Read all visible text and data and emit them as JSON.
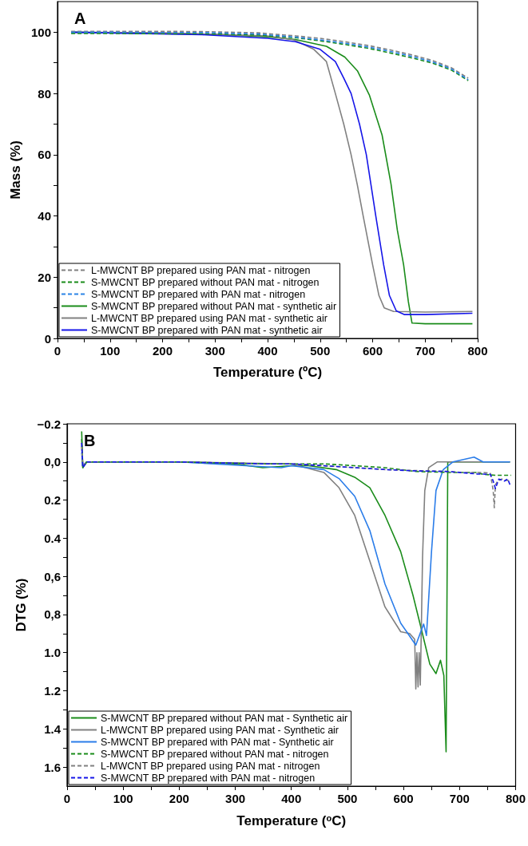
{
  "chart_data": [
    {
      "type": "line",
      "title": "A",
      "xlabel": "Temperature (ºC)",
      "ylabel": "Mass (%)",
      "xlim": [
        0,
        800
      ],
      "ylim": [
        0,
        110
      ],
      "xticks": [
        0,
        {
          "value": 50,
          "label": null
        },
        100,
        {
          "value": 150,
          "label": null
        },
        200,
        {
          "value": 250,
          "label": null
        },
        300,
        {
          "value": 350,
          "label": null
        },
        400,
        {
          "value": 450,
          "label": null
        },
        500,
        {
          "value": 550,
          "label": null
        },
        600,
        {
          "value": 650,
          "label": null
        },
        700,
        {
          "value": 750,
          "label": null
        },
        800
      ],
      "yticks": [
        0,
        {
          "value": 10,
          "label": null
        },
        20,
        {
          "value": 30,
          "label": null
        },
        40,
        {
          "value": 50,
          "label": null
        },
        60,
        {
          "value": 70,
          "label": null
        },
        80,
        {
          "value": 90,
          "label": null
        },
        100
      ],
      "grid": false,
      "legend": "bottom left",
      "marker": "none",
      "series": [
        {
          "name": "L-MWCNT BP prepared using PAN mat - nitrogen",
          "color": "#808080",
          "line_style": "dashed",
          "x": [
            26,
            100,
            200,
            276,
            382,
            453,
            500,
            547,
            590,
            629,
            670,
            712,
            750,
            782
          ],
          "values": [
            100.3,
            100.3,
            100.3,
            100.2,
            99.8,
            98.8,
            98,
            96.9,
            95.7,
            94.4,
            92.8,
            90.9,
            88.4,
            85
          ]
        },
        {
          "name": "S-MWCNT BP prepared without PAN mat - nitrogen",
          "color": "#1a8c1a",
          "line_style": "dashed",
          "x": [
            26,
            100,
            200,
            276,
            382,
            453,
            500,
            547,
            590,
            629,
            670,
            712,
            750,
            782
          ],
          "values": [
            99.6,
            99.6,
            99.5,
            99.5,
            99.1,
            98.2,
            97.2,
            96,
            94.8,
            93.4,
            91.8,
            90,
            87.6,
            84.2
          ]
        },
        {
          "name": "S-MWCNT BP prepared with PAN mat - nitrogen",
          "color": "#2b83e6",
          "line_style": "dashed",
          "x": [
            26,
            100,
            200,
            276,
            382,
            453,
            500,
            547,
            590,
            629,
            670,
            712,
            750,
            782
          ],
          "values": [
            100,
            100,
            99.9,
            99.9,
            99.4,
            98.4,
            97.5,
            96.4,
            95.2,
            93.9,
            92.3,
            90.4,
            88,
            84.5
          ]
        },
        {
          "name": "S-MWCNT BP prepared without PAN mat - synthetic air",
          "color": "#1a8c1a",
          "line_style": "solid",
          "x": [
            26,
            300,
            400,
            453,
            512,
            547,
            571,
            594,
            618,
            635,
            647,
            659,
            668,
            675,
            700,
            790
          ],
          "values": [
            100,
            99.3,
            98.5,
            97.6,
            95.4,
            91.9,
            87.4,
            79.4,
            66.4,
            50.4,
            35.4,
            24,
            12,
            5,
            4.8,
            4.8
          ]
        },
        {
          "name": "L-MWCNT BP prepared using PAN mat - synthetic air",
          "color": "#808080",
          "line_style": "solid",
          "x": [
            26,
            200,
            400,
            450,
            488,
            512,
            529,
            545,
            559,
            571,
            582,
            600,
            612,
            622,
            640,
            700,
            790
          ],
          "values": [
            100,
            99.8,
            98.8,
            97.5,
            94.4,
            90.4,
            80,
            70,
            60,
            50,
            40,
            24,
            14,
            10,
            8.8,
            8.6,
            8.8
          ]
        },
        {
          "name": "S-MWCNT BP prepared with PAN mat - synthetic air",
          "color": "#1515e8",
          "line_style": "solid",
          "x": [
            26,
            276,
            400,
            453,
            500,
            529,
            545,
            559,
            575,
            588,
            597,
            606,
            621,
            632,
            645,
            660,
            700,
            790
          ],
          "values": [
            100,
            99.2,
            98,
            96.9,
            94.4,
            90.4,
            85,
            80,
            70,
            60,
            50,
            40,
            24,
            14,
            9,
            7.8,
            7.8,
            8.2
          ]
        }
      ]
    },
    {
      "type": "line",
      "title": "B",
      "xlabel": "Temperature ($^{o}$C)",
      "ylabel": "DTG (%)",
      "xlim": [
        0,
        800
      ],
      "ylim": [
        1.7,
        -0.2
      ],
      "xticks": [
        0,
        {
          "value": 50,
          "label": null
        },
        100,
        {
          "value": 150,
          "label": null
        },
        200,
        {
          "value": 250,
          "label": null
        },
        300,
        {
          "value": 350,
          "label": null
        },
        400,
        {
          "value": 450,
          "label": null
        },
        500,
        {
          "value": 550,
          "label": null
        },
        600,
        {
          "value": 650,
          "label": null
        },
        700,
        {
          "value": 750,
          "label": null
        },
        800
      ],
      "yticks": [
        {
          "value": -0.2,
          "label": "−0.2"
        },
        {
          "value": -0.1,
          "label": null
        },
        {
          "value": 0,
          "label": "0,0"
        },
        {
          "value": 0.1,
          "label": null
        },
        {
          "value": 0.2,
          "label": "0.2"
        },
        {
          "value": 0.3,
          "label": null
        },
        {
          "value": 0.4,
          "label": "0.4"
        },
        {
          "value": 0.5,
          "label": null
        },
        {
          "value": 0.6,
          "label": "0,6"
        },
        {
          "value": 0.7,
          "label": null
        },
        {
          "value": 0.8,
          "label": "0,8"
        },
        {
          "value": 0.9,
          "label": null
        },
        {
          "value": 1.0,
          "label": "1.0"
        },
        {
          "value": 1.1,
          "label": null
        },
        {
          "value": 1.2,
          "label": "1.2"
        },
        {
          "value": 1.3,
          "label": null
        },
        {
          "value": 1.4,
          "label": "1.4"
        },
        {
          "value": 1.5,
          "label": null
        },
        {
          "value": 1.6,
          "label": "1.6"
        }
      ],
      "grid": false,
      "legend": "bottom left",
      "marker": "none",
      "series": [
        {
          "name": "S-MWCNT BP prepared without PAN mat - Synthetic air",
          "color": "#1a8c1a",
          "line_style": "solid",
          "x": [
            26,
            28,
            35,
            200,
            300,
            349,
            400,
            431,
            480,
            513,
            540,
            567,
            595,
            617,
            633,
            647,
            658,
            666,
            672,
            676,
            679,
            700,
            790
          ],
          "values": [
            -0.16,
            0.03,
            0,
            0,
            0.01,
            0.03,
            0.02,
            0.02,
            0.04,
            0.08,
            0.135,
            0.28,
            0.47,
            0.7,
            0.89,
            1.06,
            1.11,
            1.04,
            1.12,
            1.52,
            0,
            0,
            0
          ]
        },
        {
          "name": "L-MWCNT BP prepared using PAN mat - Synthetic air",
          "color": "#808080",
          "line_style": "solid",
          "x": [
            26,
            28,
            35,
            200,
            400,
            458,
            485,
            513,
            540,
            567,
            595,
            611,
            620,
            622,
            624,
            626,
            628,
            630,
            632,
            634,
            638,
            645,
            660,
            790
          ],
          "values": [
            -0.1,
            0.02,
            0,
            0,
            0.01,
            0.055,
            0.135,
            0.28,
            0.52,
            0.76,
            0.89,
            0.9,
            0.93,
            1.19,
            1,
            1.18,
            1,
            1.17,
            0.85,
            0.5,
            0.15,
            0.03,
            0,
            0
          ]
        },
        {
          "name": "S-MWCNT BP prepared with PAN mat - Synthetic air",
          "color": "#2b7de9",
          "line_style": "solid",
          "x": [
            26,
            28,
            35,
            200,
            382,
            400,
            458,
            485,
            513,
            540,
            567,
            595,
            622,
            636,
            641,
            650,
            658,
            671,
            688,
            726,
            742,
            790
          ],
          "values": [
            -0.05,
            0.02,
            0,
            0,
            0.03,
            0.02,
            0.04,
            0.087,
            0.18,
            0.36,
            0.64,
            0.845,
            0.96,
            0.85,
            0.91,
            0.47,
            0.15,
            0.04,
            0,
            -0.025,
            0,
            0
          ]
        },
        {
          "name": "S-MWCNT BP prepared without PAN mat - nitrogen",
          "color": "#1a8c1a",
          "line_style": "dashed",
          "x": [
            26,
            28,
            35,
            200,
            350,
            400,
            458,
            513,
            567,
            622,
            680,
            731,
            742,
            764,
            792
          ],
          "values": [
            -0.12,
            0.03,
            0,
            0,
            0.01,
            0.01,
            0.01,
            0.02,
            0.03,
            0.05,
            0.055,
            0.055,
            0.065,
            0.07,
            0.07
          ]
        },
        {
          "name": "L-MWCNT BP prepared using PAN mat - nitrogen",
          "color": "#808080",
          "line_style": "dashed",
          "x": [
            26,
            28,
            35,
            200,
            350,
            400,
            458,
            513,
            567,
            622,
            680,
            704,
            742,
            755,
            760,
            762,
            764,
            768,
            775,
            790
          ],
          "values": [
            -0.08,
            0.02,
            0,
            0,
            0.01,
            0.01,
            0.02,
            0.03,
            0.04,
            0.045,
            0.05,
            0.055,
            0.055,
            0.06,
            0.15,
            0.24,
            0.12,
            0.1,
            0.09,
            0.1
          ]
        },
        {
          "name": "S-MWCNT BP prepared with PAN mat - nitrogen",
          "color": "#1515e8",
          "line_style": "dashed",
          "x": [
            26,
            28,
            35,
            200,
            350,
            400,
            458,
            513,
            567,
            622,
            680,
            731,
            755,
            760,
            764,
            770,
            780,
            786,
            790
          ],
          "values": [
            -0.1,
            0.03,
            0,
            0,
            0.01,
            0.01,
            0.02,
            0.03,
            0.04,
            0.047,
            0.05,
            0.063,
            0.065,
            0.1,
            0.14,
            0.09,
            0.1,
            0.09,
            0.12
          ]
        }
      ]
    }
  ]
}
